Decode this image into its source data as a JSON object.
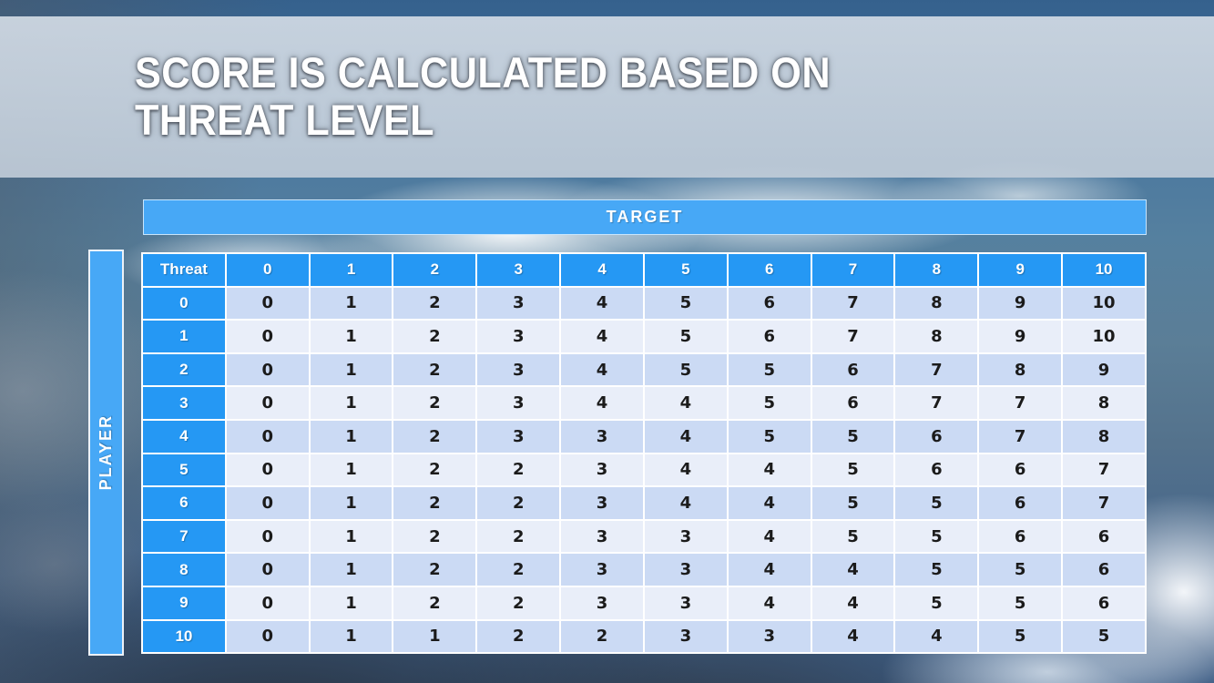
{
  "slide": {
    "title_line1": "SCORE IS CALCULATED BASED ON",
    "title_line2": "THREAT LEVEL"
  },
  "matrix": {
    "target_label": "TARGET",
    "player_label": "PLAYER",
    "corner_label": "Threat",
    "column_headers": [
      "0",
      "1",
      "2",
      "3",
      "4",
      "5",
      "6",
      "7",
      "8",
      "9",
      "10"
    ],
    "row_headers": [
      "0",
      "1",
      "2",
      "3",
      "4",
      "5",
      "6",
      "7",
      "8",
      "9",
      "10"
    ],
    "rows": [
      [
        0,
        1,
        2,
        3,
        4,
        5,
        6,
        7,
        8,
        9,
        10
      ],
      [
        0,
        1,
        2,
        3,
        4,
        5,
        6,
        7,
        8,
        9,
        10
      ],
      [
        0,
        1,
        2,
        3,
        4,
        5,
        5,
        6,
        7,
        8,
        9
      ],
      [
        0,
        1,
        2,
        3,
        4,
        4,
        5,
        6,
        7,
        7,
        8
      ],
      [
        0,
        1,
        2,
        3,
        3,
        4,
        5,
        5,
        6,
        7,
        8
      ],
      [
        0,
        1,
        2,
        2,
        3,
        4,
        4,
        5,
        6,
        6,
        7
      ],
      [
        0,
        1,
        2,
        2,
        3,
        4,
        4,
        5,
        5,
        6,
        7
      ],
      [
        0,
        1,
        2,
        2,
        3,
        3,
        4,
        5,
        5,
        6,
        6
      ],
      [
        0,
        1,
        2,
        2,
        3,
        3,
        4,
        4,
        5,
        5,
        6
      ],
      [
        0,
        1,
        2,
        2,
        3,
        3,
        4,
        4,
        5,
        5,
        6
      ],
      [
        0,
        1,
        1,
        2,
        2,
        3,
        3,
        4,
        4,
        5,
        5
      ]
    ]
  },
  "chart_data": {
    "type": "table",
    "title": "SCORE IS CALCULATED BASED ON THREAT LEVEL",
    "x_axis_label": "TARGET",
    "y_axis_label": "PLAYER",
    "corner_label": "Threat",
    "columns": [
      "0",
      "1",
      "2",
      "3",
      "4",
      "5",
      "6",
      "7",
      "8",
      "9",
      "10"
    ],
    "row_headers": [
      "0",
      "1",
      "2",
      "3",
      "4",
      "5",
      "6",
      "7",
      "8",
      "9",
      "10"
    ],
    "values": [
      [
        0,
        1,
        2,
        3,
        4,
        5,
        6,
        7,
        8,
        9,
        10
      ],
      [
        0,
        1,
        2,
        3,
        4,
        5,
        6,
        7,
        8,
        9,
        10
      ],
      [
        0,
        1,
        2,
        3,
        4,
        5,
        5,
        6,
        7,
        8,
        9
      ],
      [
        0,
        1,
        2,
        3,
        4,
        4,
        5,
        6,
        7,
        7,
        8
      ],
      [
        0,
        1,
        2,
        3,
        3,
        4,
        5,
        5,
        6,
        7,
        8
      ],
      [
        0,
        1,
        2,
        2,
        3,
        4,
        4,
        5,
        6,
        6,
        7
      ],
      [
        0,
        1,
        2,
        2,
        3,
        4,
        4,
        5,
        5,
        6,
        7
      ],
      [
        0,
        1,
        2,
        2,
        3,
        3,
        4,
        5,
        5,
        6,
        6
      ],
      [
        0,
        1,
        2,
        2,
        3,
        3,
        4,
        4,
        5,
        5,
        6
      ],
      [
        0,
        1,
        2,
        2,
        3,
        3,
        4,
        4,
        5,
        5,
        6
      ],
      [
        0,
        1,
        1,
        2,
        2,
        3,
        3,
        4,
        4,
        5,
        5
      ]
    ]
  },
  "colors": {
    "header_cell_blue": "#2598f4",
    "axis_band_blue": "#47a8f6",
    "row_band_dark": "#cbdaf4",
    "row_band_light": "#e9eef9",
    "title_text": "#ffffff",
    "body_text": "#1b1b1b"
  }
}
